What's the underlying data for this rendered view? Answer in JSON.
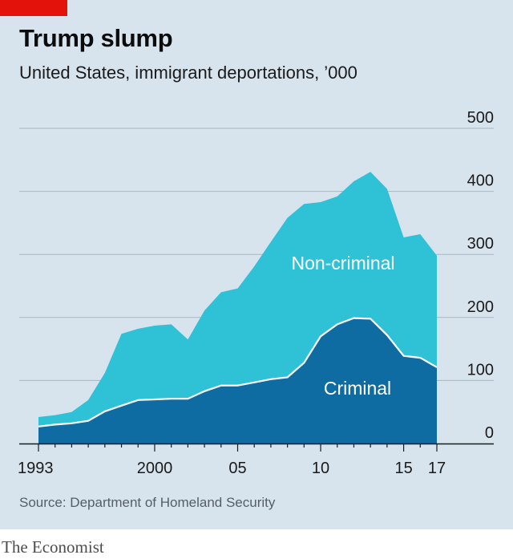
{
  "title": "Trump slump",
  "subtitle": "United States, immigrant deportations, ’000",
  "source": "Source: Department of Homeland Security",
  "brand": "The Economist",
  "colors": {
    "background": "#d7e4ee",
    "criminal": "#0f6ca2",
    "non_criminal": "#2fc1d6",
    "accent": "#e3120b"
  },
  "chart_data": {
    "type": "area",
    "stacked": true,
    "x": [
      1993,
      1994,
      1995,
      1996,
      1997,
      1998,
      1999,
      2000,
      2001,
      2002,
      2003,
      2004,
      2005,
      2006,
      2007,
      2008,
      2009,
      2010,
      2011,
      2012,
      2013,
      2014,
      2015,
      2016,
      2017
    ],
    "series": [
      {
        "name": "Criminal",
        "color": "#0f6ca2",
        "values": [
          27,
          30,
          32,
          36,
          51,
          60,
          69,
          70,
          71,
          71,
          83,
          92,
          92,
          97,
          102,
          105,
          128,
          170,
          189,
          199,
          198,
          172,
          139,
          136,
          121
        ]
      },
      {
        "name": "Non-criminal",
        "color": "#2fc1d6",
        "values": [
          15,
          15,
          18,
          33,
          61,
          114,
          113,
          117,
          118,
          94,
          128,
          148,
          154,
          184,
          218,
          253,
          252,
          213,
          203,
          217,
          233,
          232,
          188,
          196,
          177
        ]
      }
    ],
    "totals": [
      42,
      45,
      50,
      69,
      112,
      174,
      182,
      187,
      189,
      165,
      211,
      240,
      246,
      281,
      320,
      358,
      380,
      383,
      392,
      416,
      431,
      404,
      327,
      332,
      298
    ],
    "x_tick_labels": [
      "1993",
      "2000",
      "05",
      "10",
      "15",
      "17"
    ],
    "x_tick_values": [
      1993,
      2000,
      2005,
      2010,
      2015,
      2017
    ],
    "y_ticks": [
      0,
      100,
      200,
      300,
      400,
      500
    ],
    "ylim": [
      0,
      500
    ],
    "xlim": [
      1993,
      2017
    ],
    "grid": true,
    "y_axis_side": "right",
    "labels": {
      "criminal": "Criminal",
      "non_criminal": "Non-criminal"
    }
  }
}
